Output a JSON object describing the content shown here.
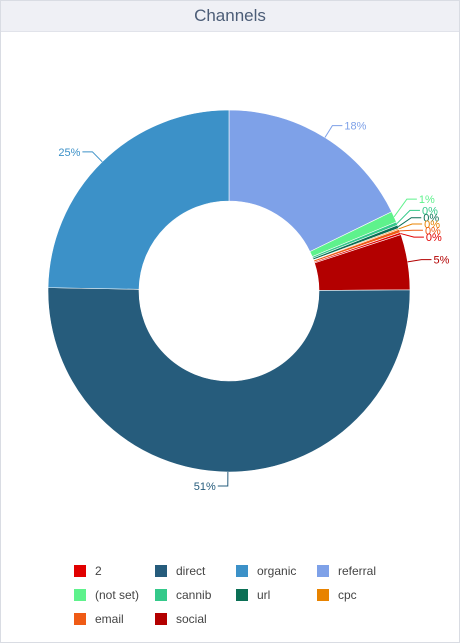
{
  "panel": {
    "title": "Channels"
  },
  "chart_data": {
    "type": "pie",
    "title": "Channels",
    "donut": true,
    "categories": [
      "2",
      "direct",
      "organic",
      "referral",
      "(not set)",
      "cannib",
      "url",
      "cpc",
      "email",
      "social"
    ],
    "values": [
      0.2,
      51,
      25,
      18,
      1,
      0.3,
      0.3,
      0.1,
      0.3,
      5
    ],
    "data_labels": [
      "0%",
      "51%",
      "25%",
      "18%",
      "1%",
      "0%",
      "0%",
      "0%",
      "0%",
      "5%"
    ],
    "colors": [
      "#e10000",
      "#265c7c",
      "#3c91c8",
      "#7ea1e8",
      "#5ef28c",
      "#34c98a",
      "#0b6f55",
      "#e88300",
      "#ef5b16",
      "#b30000"
    ],
    "legend_position": "bottom"
  }
}
